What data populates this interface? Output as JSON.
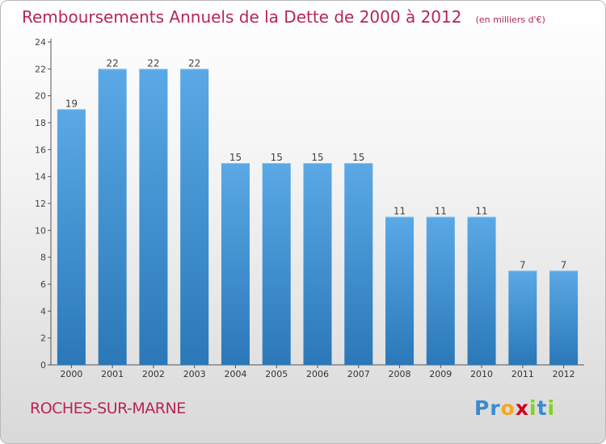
{
  "chart_data": {
    "type": "bar",
    "title": "Remboursements Annuels de la Dette de 2000 à 2012",
    "unit_note": "(en milliers d'€)",
    "categories": [
      "2000",
      "2001",
      "2002",
      "2003",
      "2004",
      "2005",
      "2006",
      "2007",
      "2008",
      "2009",
      "2010",
      "2011",
      "2012"
    ],
    "values": [
      19,
      22,
      22,
      22,
      15,
      15,
      15,
      15,
      11,
      11,
      11,
      7,
      7
    ],
    "ylim": [
      0,
      24
    ],
    "yticks": [
      0,
      2,
      4,
      6,
      8,
      10,
      12,
      14,
      16,
      18,
      20,
      22,
      24
    ],
    "grid": false,
    "xlabel": "",
    "ylabel": ""
  },
  "footer": {
    "commune": "ROCHES-SUR-MARNE",
    "logo_letters": [
      "P",
      "r",
      "o",
      "x",
      "i",
      "t",
      "i"
    ]
  },
  "colors": {
    "bar_top": "#5aa9e6",
    "bar_bottom": "#2a78b8",
    "title": "#b8245a",
    "logo": [
      "#3a8ad0",
      "#3a8ad0",
      "#f5a623",
      "#d0021b",
      "#7ed321",
      "#3a8ad0",
      "#7ed321"
    ]
  }
}
